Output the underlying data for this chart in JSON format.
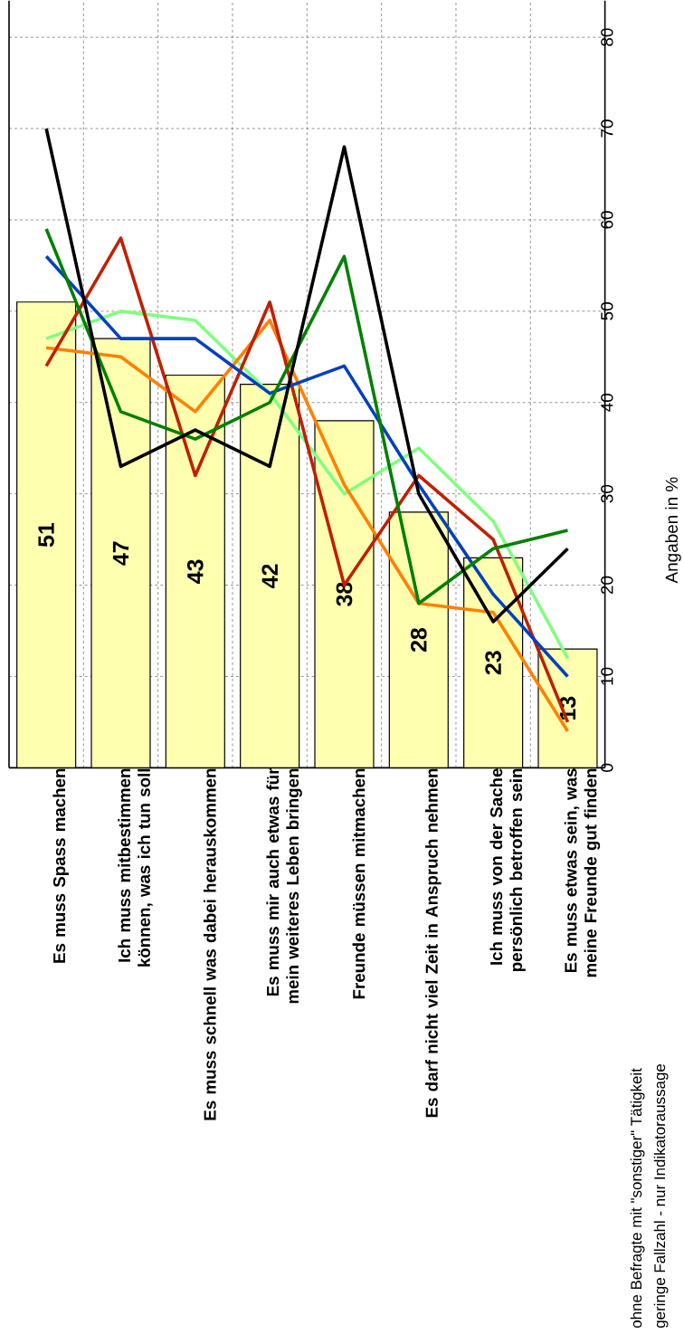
{
  "chart_data": {
    "type": "bar",
    "categories": [
      "Es muss Spass machen",
      "Ich muss mitbestimmen können, was ich tun soll",
      "Es muss schnell was dabei herauskommen",
      "Es muss mir auch etwas für mein weiteres Leben bringen",
      "Freunde müssen mitmachen",
      "Es darf nicht viel Zeit in Anspruch nehmen",
      "Ich muss von der Sache persönlich betroffen sein",
      "Es muss etwas sein, was meine Freunde gut finden"
    ],
    "ylabel": "Angaben in %",
    "ylim": [
      0,
      84
    ],
    "yticks": [
      0,
      10,
      20,
      30,
      40,
      50,
      60,
      70,
      80
    ],
    "grid": true,
    "annotations": [
      "ohne Befragte mit \"sonstiger\" Tätigkeit",
      "geringe Fallzahl - nur Indikatoraussage"
    ],
    "series": [
      {
        "color": "#ffffb0",
        "values": [
          51,
          47,
          43,
          42,
          38,
          28,
          23,
          13
        ],
        "value_labels": [
          "51",
          "47",
          "43",
          "42",
          "38",
          "28",
          "23",
          "13"
        ]
      },
      {
        "type": "line",
        "color": "#80ff80",
        "values": [
          47,
          50,
          49,
          41,
          30,
          35,
          27,
          12
        ]
      },
      {
        "type": "line",
        "color": "#ff8000",
        "values": [
          46,
          45,
          39,
          49,
          31,
          18,
          17,
          4
        ]
      },
      {
        "type": "line",
        "color": "#c02000",
        "values": [
          44,
          58,
          32,
          51,
          20,
          32,
          25,
          5
        ]
      },
      {
        "type": "line",
        "color": "#0040c0",
        "values": [
          56,
          47,
          47,
          41,
          44,
          31,
          19,
          10
        ]
      },
      {
        "type": "line",
        "color": "#008000",
        "values": [
          59,
          39,
          36,
          40,
          56,
          18,
          24,
          26
        ]
      },
      {
        "type": "line",
        "color": "#000000",
        "values": [
          70,
          33,
          37,
          33,
          68,
          30,
          16,
          24
        ]
      }
    ]
  }
}
